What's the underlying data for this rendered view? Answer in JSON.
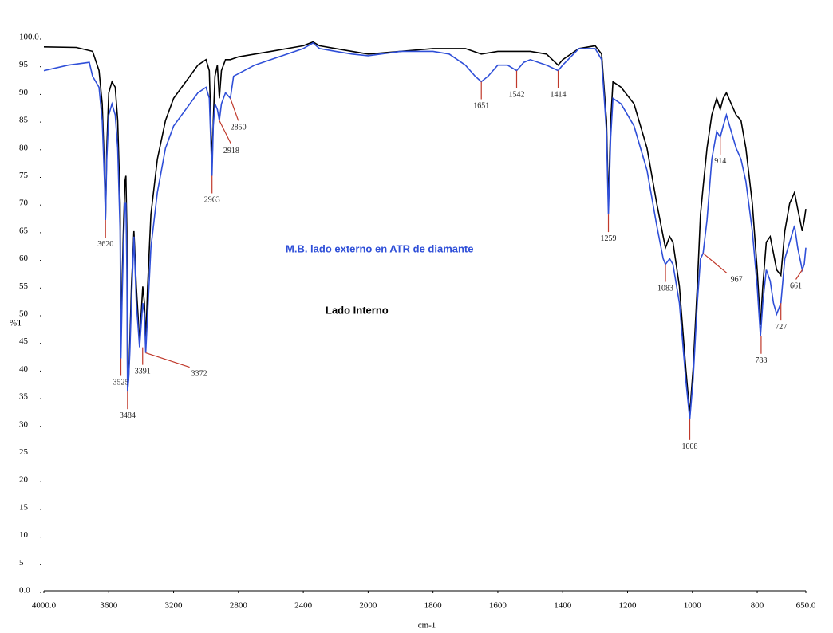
{
  "chart_data": {
    "type": "line",
    "x_label": "cm-1",
    "y_label": "%T",
    "xlim": [
      4000,
      650
    ],
    "ylim": [
      0,
      100
    ],
    "xticks": [
      {
        "value": 4000,
        "label": "4000.0"
      },
      3600,
      3200,
      2800,
      2400,
      2000,
      1800,
      1600,
      1400,
      1200,
      1000,
      800,
      {
        "value": 650,
        "label": "650.0"
      }
    ],
    "yticks": [
      {
        "value": 0,
        "label": "0.0"
      },
      5,
      10,
      15,
      20,
      25,
      30,
      35,
      40,
      45,
      50,
      55,
      60,
      65,
      70,
      75,
      80,
      85,
      90,
      95,
      {
        "value": 100,
        "label": "100.0"
      }
    ],
    "series": [
      {
        "name": "Lado Interno",
        "color": "#000000",
        "x": [
          4000,
          3800,
          3700,
          3660,
          3640,
          3625,
          3620,
          3612,
          3600,
          3580,
          3560,
          3545,
          3530,
          3525,
          3518,
          3510,
          3500,
          3494,
          3488,
          3484,
          3478,
          3470,
          3460,
          3452,
          3445,
          3440,
          3430,
          3420,
          3410,
          3400,
          3390,
          3380,
          3372,
          3360,
          3340,
          3300,
          3250,
          3200,
          3100,
          3050,
          3000,
          2980,
          2963,
          2955,
          2945,
          2930,
          2918,
          2905,
          2880,
          2850,
          2800,
          2600,
          2400,
          2340,
          2300,
          2200,
          2100,
          2000,
          1900,
          1800,
          1700,
          1651,
          1600,
          1542,
          1500,
          1450,
          1414,
          1400,
          1350,
          1300,
          1280,
          1265,
          1259,
          1252,
          1245,
          1220,
          1180,
          1140,
          1110,
          1090,
          1083,
          1070,
          1060,
          1040,
          1020,
          1008,
          998,
          985,
          975,
          967,
          955,
          940,
          925,
          914,
          905,
          895,
          880,
          865,
          850,
          835,
          815,
          800,
          790,
          783,
          772,
          760,
          750,
          740,
          727,
          715,
          700,
          685,
          675,
          661,
          655,
          650
        ],
        "values": [
          98.3,
          98.2,
          97.5,
          94,
          88,
          75,
          67,
          80,
          90,
          92,
          91,
          85,
          70,
          45,
          55,
          65,
          74,
          75,
          65,
          40,
          38,
          45,
          55,
          60,
          65,
          62,
          55,
          50,
          45,
          50,
          55,
          52,
          45,
          55,
          68,
          78,
          85,
          89,
          93,
          95,
          96,
          94,
          77,
          85,
          93,
          95,
          89,
          94,
          96,
          96,
          96.5,
          97.5,
          98.5,
          99.2,
          98.5,
          98,
          97.5,
          97,
          97.5,
          98,
          98,
          97,
          97.5,
          97.5,
          97.5,
          97,
          95,
          96,
          98,
          98.5,
          97,
          85,
          70,
          85,
          92,
          91,
          88,
          80,
          70,
          64,
          62,
          64,
          63,
          55,
          40,
          32,
          40,
          55,
          68,
          73,
          80,
          86,
          89,
          87,
          89,
          90,
          88,
          86,
          85,
          80,
          70,
          58,
          48,
          55,
          63,
          64,
          61,
          58,
          57,
          65,
          70,
          72,
          69,
          65,
          67,
          69
        ]
      },
      {
        "name": "M.B. lado externo en ATR de diamante",
        "color": "#2f4fd8",
        "x": [
          4000,
          3850,
          3720,
          3700,
          3660,
          3640,
          3625,
          3620,
          3612,
          3600,
          3580,
          3560,
          3545,
          3530,
          3525,
          3518,
          3510,
          3500,
          3494,
          3488,
          3484,
          3478,
          3470,
          3460,
          3452,
          3445,
          3440,
          3430,
          3420,
          3410,
          3400,
          3390,
          3380,
          3372,
          3360,
          3340,
          3300,
          3250,
          3200,
          3100,
          3050,
          3000,
          2980,
          2963,
          2955,
          2945,
          2930,
          2918,
          2905,
          2880,
          2850,
          2830,
          2700,
          2600,
          2400,
          2340,
          2300,
          2200,
          2100,
          2000,
          1900,
          1800,
          1750,
          1700,
          1670,
          1651,
          1630,
          1600,
          1570,
          1542,
          1520,
          1500,
          1450,
          1414,
          1400,
          1350,
          1300,
          1280,
          1265,
          1259,
          1252,
          1245,
          1220,
          1180,
          1140,
          1110,
          1090,
          1083,
          1070,
          1060,
          1040,
          1020,
          1008,
          998,
          985,
          975,
          967,
          955,
          940,
          925,
          914,
          905,
          895,
          880,
          865,
          850,
          835,
          815,
          800,
          790,
          783,
          772,
          760,
          750,
          740,
          727,
          715,
          700,
          685,
          675,
          661,
          655,
          650
        ],
        "values": [
          94,
          95,
          95.5,
          93,
          91,
          85,
          73,
          67,
          78,
          86,
          88,
          86,
          80,
          65,
          42,
          52,
          62,
          70,
          70,
          58,
          36,
          38,
          43,
          52,
          58,
          64,
          60,
          52,
          48,
          44,
          48,
          52,
          50,
          43,
          50,
          62,
          72,
          80,
          84,
          88,
          90,
          91,
          89,
          75,
          84,
          88,
          87,
          85,
          88,
          90,
          89,
          93,
          95,
          96,
          98,
          99,
          98,
          97.5,
          97,
          96.7,
          97.5,
          97.5,
          97,
          95,
          93,
          92,
          93,
          95,
          95,
          94,
          95.5,
          96,
          95,
          94,
          95,
          98,
          98,
          96,
          83,
          68,
          82,
          89,
          88,
          84,
          76,
          66,
          60,
          59,
          60,
          59,
          52,
          38,
          31,
          38,
          52,
          60,
          61,
          67,
          78,
          83,
          82,
          84,
          86,
          83,
          80,
          78,
          74,
          65,
          55,
          46,
          52,
          58,
          56,
          52,
          50,
          52,
          60,
          63,
          66,
          62,
          58,
          59,
          62
        ]
      }
    ],
    "peaks": [
      {
        "x": 3620,
        "y": 67
      },
      {
        "x": 3525,
        "y": 42
      },
      {
        "x": 3484,
        "y": 36
      },
      {
        "x": 3391,
        "y": 44
      },
      {
        "x": 3372,
        "y": 43
      },
      {
        "x": 2963,
        "y": 75
      },
      {
        "x": 2918,
        "y": 85
      },
      {
        "x": 2850,
        "y": 89
      },
      {
        "x": 1651,
        "y": 92
      },
      {
        "x": 1542,
        "y": 94
      },
      {
        "x": 1414,
        "y": 94
      },
      {
        "x": 1259,
        "y": 68
      },
      {
        "x": 1083,
        "y": 59
      },
      {
        "x": 1008,
        "y": 31
      },
      {
        "x": 967,
        "y": 61
      },
      {
        "x": 914,
        "y": 82
      },
      {
        "x": 788,
        "y": 46
      },
      {
        "x": 727,
        "y": 52
      },
      {
        "x": 661,
        "y": 58
      }
    ]
  }
}
